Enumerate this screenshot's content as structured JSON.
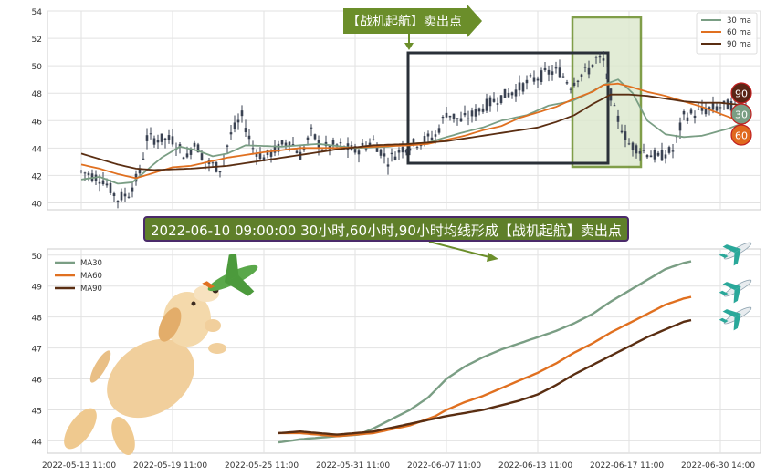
{
  "chart_data": [
    {
      "type": "candlestick",
      "ylim": [
        39.5,
        54
      ],
      "yticks": [
        "40",
        "42",
        "44",
        "46",
        "48",
        "50",
        "52",
        "54"
      ],
      "grid": true,
      "legend_position": "top-right",
      "legend": [
        {
          "name": "30 ma",
          "color": "#7a9e84"
        },
        {
          "name": "60 ma",
          "color": "#e07020"
        },
        {
          "name": "90 ma",
          "color": "#5a2e12"
        }
      ],
      "annotation": "【战机起航】卖出点",
      "end_badges": [
        {
          "label": "90",
          "color": "#5a2515"
        },
        {
          "label": "30",
          "color": "#7a9e84"
        },
        {
          "label": "60",
          "color": "#e0691e"
        }
      ],
      "x_points": 200,
      "x_tick_index": [
        0,
        25,
        50,
        75,
        100,
        125,
        150,
        175
      ],
      "price_knots": [
        [
          0,
          42.3
        ],
        [
          6,
          41.7
        ],
        [
          10,
          40.3
        ],
        [
          13,
          40.7
        ],
        [
          16,
          42.2
        ],
        [
          18,
          44.7
        ],
        [
          25,
          44.6
        ],
        [
          29,
          43.3
        ],
        [
          31,
          44.5
        ],
        [
          34,
          43.0
        ],
        [
          38,
          42.5
        ],
        [
          41,
          45.0
        ],
        [
          44,
          46.3
        ],
        [
          47,
          44.0
        ],
        [
          50,
          43.3
        ],
        [
          54,
          44.0
        ],
        [
          57,
          44.6
        ],
        [
          60,
          43.5
        ],
        [
          63,
          45.1
        ],
        [
          66,
          44.0
        ],
        [
          70,
          44.2
        ],
        [
          75,
          43.8
        ],
        [
          80,
          44.5
        ],
        [
          84,
          43.1
        ],
        [
          88,
          44.0
        ],
        [
          93,
          44.5
        ],
        [
          97,
          44.9
        ],
        [
          100,
          46.6
        ],
        [
          104,
          46.0
        ],
        [
          107,
          46.4
        ],
        [
          110,
          47.0
        ],
        [
          114,
          47.6
        ],
        [
          119,
          48.2
        ],
        [
          123,
          48.9
        ],
        [
          128,
          49.5
        ],
        [
          131,
          49.6
        ],
        [
          134,
          48.6
        ],
        [
          136,
          49.2
        ],
        [
          139,
          49.7
        ],
        [
          141,
          50.5
        ],
        [
          143,
          50.3
        ],
        [
          146,
          46.7
        ],
        [
          150,
          44.3
        ],
        [
          154,
          43.8
        ],
        [
          158,
          43.3
        ],
        [
          160,
          43.6
        ],
        [
          162,
          43.8
        ],
        [
          165,
          46.3
        ],
        [
          170,
          46.7
        ],
        [
          175,
          47.0
        ],
        [
          179,
          47.2
        ],
        [
          182,
          47.0
        ]
      ],
      "ma30_knots": [
        [
          0,
          41.7
        ],
        [
          5,
          41.9
        ],
        [
          10,
          41.4
        ],
        [
          14,
          41.5
        ],
        [
          18,
          42.4
        ],
        [
          22,
          43.3
        ],
        [
          27,
          44.1
        ],
        [
          32,
          43.8
        ],
        [
          36,
          43.4
        ],
        [
          40,
          43.6
        ],
        [
          45,
          44.2
        ],
        [
          55,
          44.1
        ],
        [
          65,
          44.3
        ],
        [
          75,
          44.0
        ],
        [
          84,
          44.1
        ],
        [
          90,
          44.3
        ],
        [
          95,
          44.4
        ],
        [
          100,
          44.8
        ],
        [
          104,
          45.1
        ],
        [
          110,
          45.5
        ],
        [
          115,
          46.0
        ],
        [
          122,
          46.4
        ],
        [
          128,
          47.1
        ],
        [
          132,
          47.3
        ],
        [
          135,
          47.5
        ],
        [
          139,
          48.0
        ],
        [
          143,
          48.6
        ],
        [
          147,
          49.0
        ],
        [
          151,
          48.0
        ],
        [
          155,
          46.0
        ],
        [
          160,
          45.0
        ],
        [
          165,
          44.8
        ],
        [
          170,
          44.9
        ],
        [
          177,
          45.4
        ],
        [
          182,
          45.9
        ]
      ],
      "ma60_knots": [
        [
          0,
          42.8
        ],
        [
          5,
          42.5
        ],
        [
          10,
          42.1
        ],
        [
          15,
          41.8
        ],
        [
          20,
          42.2
        ],
        [
          25,
          42.6
        ],
        [
          30,
          42.7
        ],
        [
          40,
          43.3
        ],
        [
          50,
          43.7
        ],
        [
          60,
          44.0
        ],
        [
          70,
          44.0
        ],
        [
          80,
          44.1
        ],
        [
          90,
          44.2
        ],
        [
          95,
          44.3
        ],
        [
          100,
          44.6
        ],
        [
          105,
          44.9
        ],
        [
          110,
          45.3
        ],
        [
          115,
          45.6
        ],
        [
          120,
          46.2
        ],
        [
          125,
          46.6
        ],
        [
          130,
          47.0
        ],
        [
          135,
          47.6
        ],
        [
          140,
          48.1
        ],
        [
          143,
          48.6
        ],
        [
          147,
          48.7
        ],
        [
          150,
          48.5
        ],
        [
          155,
          48.1
        ],
        [
          160,
          47.8
        ],
        [
          165,
          47.4
        ],
        [
          170,
          47.0
        ],
        [
          175,
          46.5
        ],
        [
          182,
          45.8
        ]
      ],
      "ma90_knots": [
        [
          0,
          43.6
        ],
        [
          5,
          43.2
        ],
        [
          10,
          42.8
        ],
        [
          15,
          42.5
        ],
        [
          20,
          42.4
        ],
        [
          30,
          42.5
        ],
        [
          40,
          42.7
        ],
        [
          50,
          43.1
        ],
        [
          60,
          43.5
        ],
        [
          70,
          43.9
        ],
        [
          80,
          44.2
        ],
        [
          90,
          44.3
        ],
        [
          100,
          44.5
        ],
        [
          110,
          44.9
        ],
        [
          120,
          45.3
        ],
        [
          125,
          45.5
        ],
        [
          130,
          45.9
        ],
        [
          135,
          46.4
        ],
        [
          140,
          47.2
        ],
        [
          145,
          47.9
        ],
        [
          150,
          47.9
        ],
        [
          155,
          47.8
        ],
        [
          160,
          47.6
        ],
        [
          165,
          47.4
        ],
        [
          170,
          47.3
        ],
        [
          175,
          47.3
        ],
        [
          182,
          47.1
        ]
      ]
    },
    {
      "type": "line",
      "ylim": [
        43.6,
        50.2
      ],
      "yticks": [
        "44",
        "45",
        "46",
        "47",
        "48",
        "49",
        "50"
      ],
      "grid": true,
      "legend_position": "top-left",
      "x_points": 200,
      "x_tick_index": [
        0,
        25,
        50,
        75,
        100,
        125,
        150,
        175
      ],
      "xtick_labels": [
        "2022-05-13 11:00",
        "2022-05-19 11:00",
        "2022-05-25 11:00",
        "2022-05-31 11:00",
        "2022-06-07 11:00",
        "2022-06-13 11:00",
        "2022-06-17 11:00",
        "2022-06-30 14:00"
      ],
      "series": [
        {
          "name": "MA30",
          "color": "#7a9e84",
          "knots": [
            [
              54,
              43.95
            ],
            [
              60,
              44.05
            ],
            [
              70,
              44.15
            ],
            [
              76,
              44.2
            ],
            [
              80,
              44.4
            ],
            [
              85,
              44.7
            ],
            [
              90,
              45.0
            ],
            [
              95,
              45.4
            ],
            [
              100,
              46.0
            ],
            [
              105,
              46.4
            ],
            [
              110,
              46.7
            ],
            [
              115,
              46.95
            ],
            [
              120,
              47.15
            ],
            [
              125,
              47.35
            ],
            [
              130,
              47.55
            ],
            [
              135,
              47.8
            ],
            [
              140,
              48.1
            ],
            [
              145,
              48.5
            ],
            [
              150,
              48.85
            ],
            [
              155,
              49.2
            ],
            [
              160,
              49.55
            ],
            [
              165,
              49.75
            ],
            [
              167,
              49.8
            ]
          ]
        },
        {
          "name": "MA60",
          "color": "#e07020",
          "knots": [
            [
              54,
              44.25
            ],
            [
              60,
              44.25
            ],
            [
              70,
              44.15
            ],
            [
              80,
              44.25
            ],
            [
              90,
              44.5
            ],
            [
              97,
              44.8
            ],
            [
              100,
              45.0
            ],
            [
              105,
              45.25
            ],
            [
              110,
              45.45
            ],
            [
              115,
              45.7
            ],
            [
              120,
              45.95
            ],
            [
              125,
              46.2
            ],
            [
              130,
              46.5
            ],
            [
              135,
              46.85
            ],
            [
              140,
              47.15
            ],
            [
              145,
              47.5
            ],
            [
              150,
              47.8
            ],
            [
              155,
              48.1
            ],
            [
              160,
              48.4
            ],
            [
              165,
              48.6
            ],
            [
              167,
              48.65
            ]
          ]
        },
        {
          "name": "MA90",
          "color": "#5a2e12",
          "knots": [
            [
              54,
              44.25
            ],
            [
              60,
              44.3
            ],
            [
              70,
              44.2
            ],
            [
              80,
              44.3
            ],
            [
              90,
              44.55
            ],
            [
              100,
              44.8
            ],
            [
              110,
              45.0
            ],
            [
              120,
              45.3
            ],
            [
              125,
              45.5
            ],
            [
              130,
              45.8
            ],
            [
              135,
              46.15
            ],
            [
              140,
              46.45
            ],
            [
              145,
              46.75
            ],
            [
              150,
              47.05
            ],
            [
              155,
              47.35
            ],
            [
              160,
              47.6
            ],
            [
              165,
              47.85
            ],
            [
              167,
              47.9
            ]
          ]
        }
      ]
    }
  ],
  "banner": "2022-06-10 09:00:00 30小时,60小时,90小时均线形成【战机起航】卖出点"
}
